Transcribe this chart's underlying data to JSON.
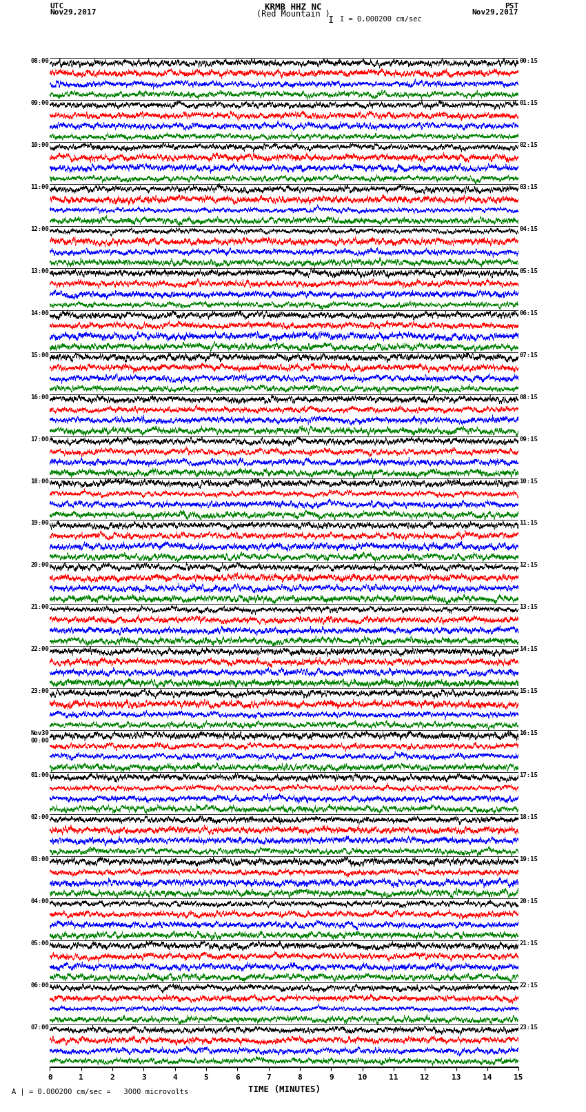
{
  "title_line1": "KRMB HHZ NC",
  "title_line2": "(Red Mountain )",
  "scale_label": "I = 0.000200 cm/sec",
  "utc_label": "UTC\nNov29,2017",
  "pst_label": "PST\nNov29,2017",
  "xlabel": "TIME (MINUTES)",
  "bottom_note": "A | = 0.000200 cm/sec =   3000 microvolts",
  "left_times": [
    "08:00",
    "09:00",
    "10:00",
    "11:00",
    "12:00",
    "13:00",
    "14:00",
    "15:00",
    "16:00",
    "17:00",
    "18:00",
    "19:00",
    "20:00",
    "21:00",
    "22:00",
    "23:00",
    "Nov30\n00:00",
    "01:00",
    "02:00",
    "03:00",
    "04:00",
    "05:00",
    "06:00",
    "07:00"
  ],
  "right_times": [
    "00:15",
    "01:15",
    "02:15",
    "03:15",
    "04:15",
    "05:15",
    "06:15",
    "07:15",
    "08:15",
    "09:15",
    "10:15",
    "11:15",
    "12:15",
    "13:15",
    "14:15",
    "15:15",
    "16:15",
    "17:15",
    "18:15",
    "19:15",
    "20:15",
    "21:15",
    "22:15",
    "23:15"
  ],
  "n_rows": 24,
  "n_traces_per_row": 4,
  "trace_colors": [
    "black",
    "red",
    "blue",
    "green"
  ],
  "x_min": 0,
  "x_max": 15,
  "x_ticks": [
    0,
    1,
    2,
    3,
    4,
    5,
    6,
    7,
    8,
    9,
    10,
    11,
    12,
    13,
    14,
    15
  ],
  "background_color": "white",
  "fig_width": 8.5,
  "fig_height": 16.13,
  "dpi": 100
}
